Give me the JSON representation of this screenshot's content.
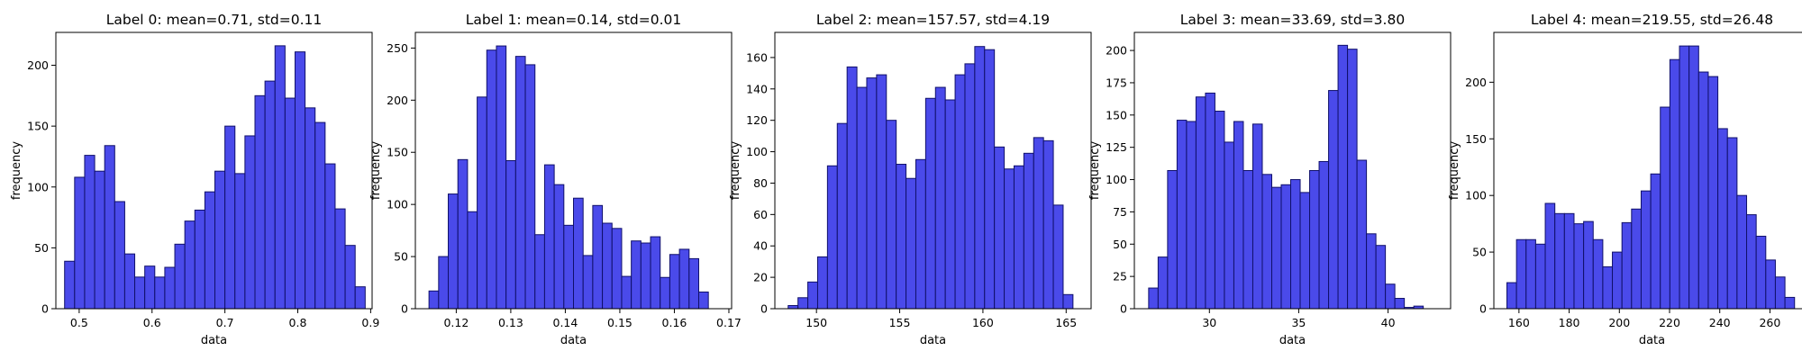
{
  "figure": {
    "background": "#ffffff"
  },
  "style": {
    "bar_fill": "#4a4aea",
    "bar_edge": "#10106a",
    "axis_color": "#000000"
  },
  "chart_data": [
    {
      "type": "bar",
      "title": "Label 0: mean=0.71, std=0.11",
      "xlabel": "data",
      "ylabel": "frequency",
      "xlim": [
        0.468,
        0.902
      ],
      "ylim": [
        0,
        227
      ],
      "xticks": [
        0.5,
        0.6,
        0.7,
        0.8,
        0.9
      ],
      "xtick_labels": [
        "0.5",
        "0.6",
        "0.7",
        "0.8",
        "0.9"
      ],
      "yticks": [
        0,
        50,
        100,
        150,
        200
      ],
      "ytick_labels": [
        "0",
        "50",
        "100",
        "150",
        "200"
      ],
      "grid": false,
      "bin_start": 0.48,
      "bin_width": 0.01375,
      "values": [
        39,
        108,
        126,
        113,
        134,
        88,
        45,
        26,
        35,
        26,
        34,
        53,
        72,
        81,
        96,
        113,
        150,
        111,
        142,
        175,
        187,
        216,
        173,
        211,
        165,
        153,
        119,
        82,
        52,
        18
      ]
    },
    {
      "type": "bar",
      "title": "Label 1: mean=0.14, std=0.01",
      "xlabel": "data",
      "ylabel": "frequency",
      "xlim": [
        0.1125,
        0.1705
      ],
      "ylim": [
        0,
        265
      ],
      "xticks": [
        0.12,
        0.13,
        0.14,
        0.15,
        0.16,
        0.17
      ],
      "xtick_labels": [
        "0.12",
        "0.13",
        "0.14",
        "0.15",
        "0.16",
        "0.17"
      ],
      "yticks": [
        0,
        50,
        100,
        150,
        200,
        250
      ],
      "ytick_labels": [
        "0",
        "50",
        "100",
        "150",
        "200",
        "250"
      ],
      "grid": false,
      "bin_start": 0.115,
      "bin_width": 0.0017667,
      "values": [
        17,
        50,
        110,
        143,
        93,
        203,
        248,
        252,
        142,
        242,
        234,
        71,
        138,
        119,
        80,
        106,
        51,
        99,
        82,
        77,
        31,
        65,
        63,
        69,
        30,
        52,
        57,
        48,
        16
      ]
    },
    {
      "type": "bar",
      "title": "Label 2: mean=157.57, std=4.19",
      "xlabel": "data",
      "ylabel": "frequency",
      "xlim": [
        147.5,
        166.5
      ],
      "ylim": [
        0,
        176
      ],
      "xticks": [
        150,
        155,
        160,
        165
      ],
      "xtick_labels": [
        "150",
        "155",
        "160",
        "165"
      ],
      "yticks": [
        0,
        20,
        40,
        60,
        80,
        100,
        120,
        140,
        160
      ],
      "ytick_labels": [
        "0",
        "20",
        "40",
        "60",
        "80",
        "100",
        "120",
        "140",
        "160"
      ],
      "grid": false,
      "bin_start": 148.3,
      "bin_width": 0.59,
      "values": [
        2,
        7,
        17,
        33,
        91,
        118,
        154,
        141,
        147,
        149,
        120,
        92,
        83,
        95,
        134,
        141,
        133,
        149,
        156,
        167,
        165,
        103,
        89,
        91,
        99,
        109,
        107,
        66,
        9
      ]
    },
    {
      "type": "bar",
      "title": "Label 3: mean=33.69, std=3.80",
      "xlabel": "data",
      "ylabel": "frequency",
      "xlim": [
        25.8,
        43.5
      ],
      "ylim": [
        0,
        214
      ],
      "xticks": [
        30,
        35,
        40
      ],
      "xtick_labels": [
        "30",
        "35",
        "40"
      ],
      "yticks": [
        0,
        25,
        50,
        75,
        100,
        125,
        150,
        175,
        200
      ],
      "ytick_labels": [
        "0",
        "25",
        "50",
        "75",
        "100",
        "125",
        "150",
        "175",
        "200"
      ],
      "grid": false,
      "bin_start": 26.6,
      "bin_width": 0.53,
      "values": [
        16,
        40,
        107,
        146,
        145,
        164,
        167,
        153,
        129,
        145,
        107,
        143,
        104,
        94,
        96,
        100,
        90,
        107,
        114,
        169,
        204,
        201,
        115,
        58,
        49,
        19,
        8,
        1,
        2
      ]
    },
    {
      "type": "bar",
      "title": "Label 4: mean=219.55, std=26.48",
      "xlabel": "data",
      "ylabel": "frequency",
      "xlim": [
        150,
        276
      ],
      "ylim": [
        0,
        244
      ],
      "xticks": [
        160,
        180,
        200,
        220,
        240,
        260
      ],
      "xtick_labels": [
        "160",
        "180",
        "200",
        "220",
        "240",
        "260"
      ],
      "yticks": [
        0,
        50,
        100,
        150,
        200
      ],
      "ytick_labels": [
        "0",
        "50",
        "100",
        "150",
        "200"
      ],
      "grid": false,
      "bin_start": 155.2,
      "bin_width": 3.82,
      "values": [
        23,
        61,
        61,
        57,
        93,
        84,
        84,
        75,
        77,
        61,
        37,
        50,
        76,
        88,
        104,
        119,
        178,
        220,
        232,
        232,
        209,
        205,
        159,
        151,
        100,
        83,
        64,
        43,
        28,
        10
      ]
    }
  ]
}
